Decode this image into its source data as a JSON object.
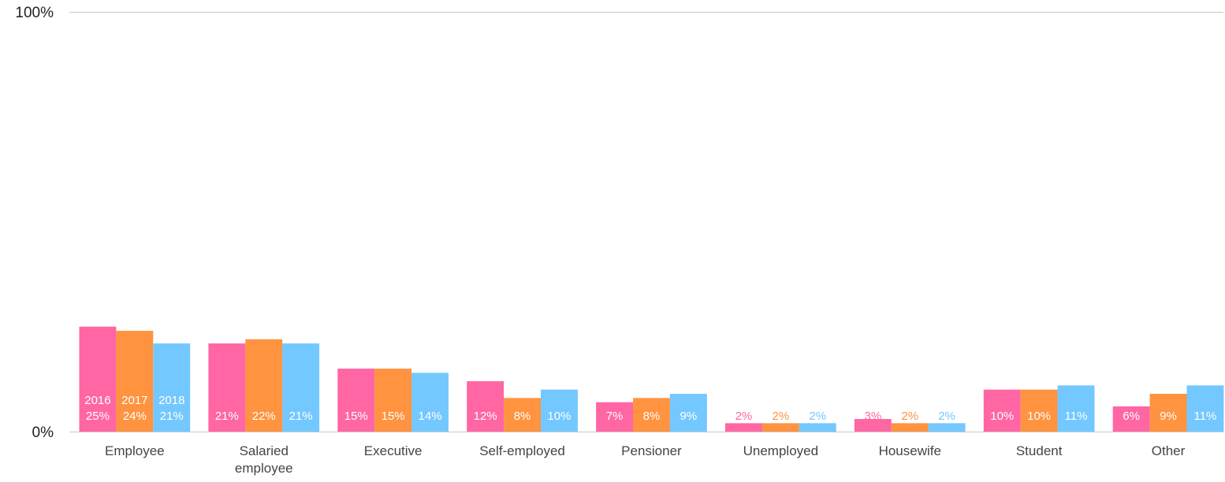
{
  "chart_data": {
    "type": "bar",
    "title": "",
    "xlabel": "",
    "ylabel": "",
    "ylim": [
      0,
      100
    ],
    "y_tick_labels": [
      "0%",
      "100%"
    ],
    "categories": [
      [
        "Employee"
      ],
      [
        "Salaried",
        "employee"
      ],
      [
        "Executive"
      ],
      [
        "Self-employed"
      ],
      [
        "Pensioner"
      ],
      [
        "Unemployed"
      ],
      [
        "Housewife"
      ],
      [
        "Student"
      ],
      [
        "Other"
      ]
    ],
    "series": [
      {
        "name": "2016",
        "color": "#ff66a3",
        "values": [
          25,
          21,
          15,
          12,
          7,
          2,
          3,
          10,
          6
        ],
        "data_labels": [
          "25%",
          "21%",
          "15%",
          "12%",
          "7%",
          "2%",
          "3%",
          "10%",
          "6%"
        ]
      },
      {
        "name": "2017",
        "color": "#ff9340",
        "values": [
          24,
          22,
          15,
          8,
          8,
          2,
          2,
          10,
          9
        ],
        "data_labels": [
          "24%",
          "22%",
          "15%",
          "8%",
          "8%",
          "2%",
          "2%",
          "10%",
          "9%"
        ]
      },
      {
        "name": "2018",
        "color": "#73c8ff",
        "values": [
          21,
          21,
          14,
          10,
          9,
          2,
          2,
          11,
          11
        ],
        "data_labels": [
          "21%",
          "21%",
          "14%",
          "10%",
          "9%",
          "2%",
          "2%",
          "11%",
          "11%"
        ]
      }
    ],
    "legend": "inside first bar group",
    "grid": false
  }
}
